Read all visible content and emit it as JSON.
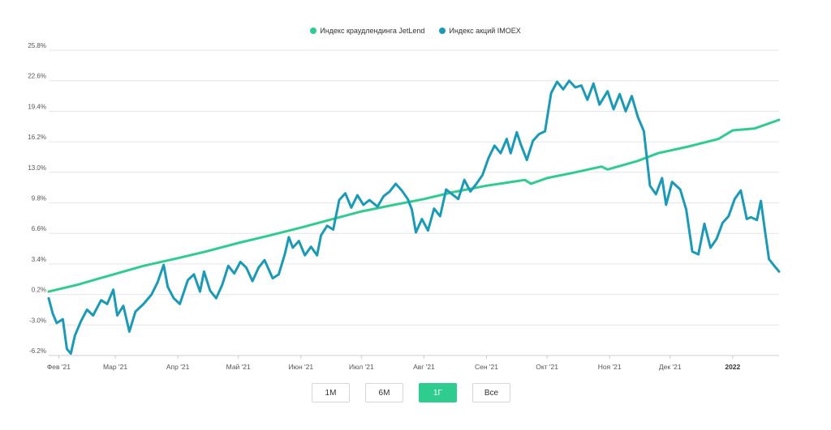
{
  "colors": {
    "jetlend": "#2ecc8e",
    "imoex": "#1a9ab7",
    "grid": "#e6e6e6"
  },
  "legend": [
    {
      "label": "Индекс краудлендинга JetLend",
      "color": "#2ecc8e"
    },
    {
      "label": "Индекс акций IMOEX",
      "color": "#1a9ab7"
    }
  ],
  "range_buttons": [
    {
      "label": "1M",
      "active": false
    },
    {
      "label": "6M",
      "active": false
    },
    {
      "label": "1Г",
      "active": true
    },
    {
      "label": "Все",
      "active": false
    }
  ],
  "chart_data": {
    "type": "line",
    "title": "",
    "xlabel": "",
    "ylabel": "",
    "ylim": [
      -6.2,
      25.8
    ],
    "yticks": [
      "25.8%",
      "22.6%",
      "19.4%",
      "16.2%",
      "13.0%",
      "9.8%",
      "6.6%",
      "3.4%",
      "0.2%",
      "-3.0%",
      "-6.2%"
    ],
    "ytick_values": [
      25.8,
      22.6,
      19.4,
      16.2,
      13.0,
      9.8,
      6.6,
      3.4,
      0.2,
      -3.0,
      -6.2
    ],
    "xlim": [
      "2021-01-27",
      "2022-01-24"
    ],
    "xticks": [
      {
        "label": "Фев '21",
        "date": "2021-02-01",
        "bold": false
      },
      {
        "label": "Мар '21",
        "date": "2021-03-01",
        "bold": false
      },
      {
        "label": "Апр '21",
        "date": "2021-04-01",
        "bold": false
      },
      {
        "label": "Май '21",
        "date": "2021-05-01",
        "bold": false
      },
      {
        "label": "Июн '21",
        "date": "2021-06-01",
        "bold": false
      },
      {
        "label": "Июл '21",
        "date": "2021-07-01",
        "bold": false
      },
      {
        "label": "Авг '21",
        "date": "2021-08-01",
        "bold": false
      },
      {
        "label": "Сен '21",
        "date": "2021-09-01",
        "bold": false
      },
      {
        "label": "Окт '21",
        "date": "2021-10-01",
        "bold": false
      },
      {
        "label": "Ноя '21",
        "date": "2021-11-01",
        "bold": false
      },
      {
        "label": "Дек '21",
        "date": "2021-12-01",
        "bold": false
      },
      {
        "label": "2022",
        "date": "2022-01-01",
        "bold": true
      }
    ],
    "grid": true,
    "legend_position": "top-center",
    "series": [
      {
        "name": "Индекс краудлендинга JetLend",
        "color": "#2ecc8e",
        "points": [
          [
            "2021-01-27",
            0.5
          ],
          [
            "2021-02-10",
            1.2
          ],
          [
            "2021-02-28",
            2.3
          ],
          [
            "2021-03-15",
            3.2
          ],
          [
            "2021-04-01",
            4.0
          ],
          [
            "2021-04-15",
            4.7
          ],
          [
            "2021-05-01",
            5.6
          ],
          [
            "2021-05-15",
            6.3
          ],
          [
            "2021-06-01",
            7.2
          ],
          [
            "2021-06-15",
            8.0
          ],
          [
            "2021-07-01",
            8.9
          ],
          [
            "2021-07-15",
            9.5
          ],
          [
            "2021-08-01",
            10.2
          ],
          [
            "2021-08-15",
            10.9
          ],
          [
            "2021-09-01",
            11.6
          ],
          [
            "2021-09-20",
            12.2
          ],
          [
            "2021-09-23",
            11.8
          ],
          [
            "2021-10-01",
            12.4
          ],
          [
            "2021-10-15",
            13.0
          ],
          [
            "2021-10-28",
            13.6
          ],
          [
            "2021-10-31",
            13.3
          ],
          [
            "2021-11-15",
            14.2
          ],
          [
            "2021-11-25",
            15.0
          ],
          [
            "2021-12-10",
            15.7
          ],
          [
            "2021-12-25",
            16.5
          ],
          [
            "2022-01-01",
            17.4
          ],
          [
            "2022-01-12",
            17.6
          ],
          [
            "2022-01-24",
            18.5
          ]
        ]
      },
      {
        "name": "Индекс акций IMOEX",
        "color": "#1a9ab7",
        "points": [
          [
            "2021-01-27",
            -0.2
          ],
          [
            "2021-01-29",
            -1.8
          ],
          [
            "2021-01-31",
            -2.8
          ],
          [
            "2021-02-03",
            -2.4
          ],
          [
            "2021-02-05",
            -5.5
          ],
          [
            "2021-02-07",
            -6.0
          ],
          [
            "2021-02-09",
            -4.1
          ],
          [
            "2021-02-12",
            -2.6
          ],
          [
            "2021-02-15",
            -1.4
          ],
          [
            "2021-02-18",
            -2.0
          ],
          [
            "2021-02-22",
            -0.4
          ],
          [
            "2021-02-25",
            -0.8
          ],
          [
            "2021-02-28",
            0.7
          ],
          [
            "2021-03-02",
            -2.0
          ],
          [
            "2021-03-05",
            -1.0
          ],
          [
            "2021-03-08",
            -3.7
          ],
          [
            "2021-03-11",
            -1.6
          ],
          [
            "2021-03-15",
            -0.8
          ],
          [
            "2021-03-19",
            0.2
          ],
          [
            "2021-03-22",
            1.5
          ],
          [
            "2021-03-25",
            3.3
          ],
          [
            "2021-03-27",
            1.0
          ],
          [
            "2021-03-30",
            -0.2
          ],
          [
            "2021-04-02",
            -0.8
          ],
          [
            "2021-04-06",
            1.7
          ],
          [
            "2021-04-09",
            2.3
          ],
          [
            "2021-04-12",
            0.5
          ],
          [
            "2021-04-14",
            2.6
          ],
          [
            "2021-04-17",
            0.6
          ],
          [
            "2021-04-20",
            -0.2
          ],
          [
            "2021-04-23",
            1.2
          ],
          [
            "2021-04-26",
            3.2
          ],
          [
            "2021-04-29",
            2.4
          ],
          [
            "2021-05-02",
            3.6
          ],
          [
            "2021-05-05",
            3.0
          ],
          [
            "2021-05-08",
            1.6
          ],
          [
            "2021-05-11",
            3.0
          ],
          [
            "2021-05-14",
            3.8
          ],
          [
            "2021-05-18",
            1.9
          ],
          [
            "2021-05-21",
            2.3
          ],
          [
            "2021-05-24",
            4.4
          ],
          [
            "2021-05-26",
            6.2
          ],
          [
            "2021-05-28",
            5.1
          ],
          [
            "2021-05-31",
            5.8
          ],
          [
            "2021-06-03",
            4.3
          ],
          [
            "2021-06-06",
            5.2
          ],
          [
            "2021-06-09",
            4.3
          ],
          [
            "2021-06-11",
            6.4
          ],
          [
            "2021-06-14",
            7.4
          ],
          [
            "2021-06-17",
            7.0
          ],
          [
            "2021-06-20",
            10.1
          ],
          [
            "2021-06-23",
            10.8
          ],
          [
            "2021-06-26",
            9.3
          ],
          [
            "2021-06-29",
            10.6
          ],
          [
            "2021-07-02",
            9.6
          ],
          [
            "2021-07-05",
            10.1
          ],
          [
            "2021-07-09",
            9.4
          ],
          [
            "2021-07-12",
            10.5
          ],
          [
            "2021-07-15",
            11.0
          ],
          [
            "2021-07-18",
            11.8
          ],
          [
            "2021-07-21",
            11.1
          ],
          [
            "2021-07-24",
            10.2
          ],
          [
            "2021-07-26",
            9.1
          ],
          [
            "2021-07-28",
            6.7
          ],
          [
            "2021-07-31",
            8.1
          ],
          [
            "2021-08-03",
            6.9
          ],
          [
            "2021-08-06",
            9.2
          ],
          [
            "2021-08-09",
            8.4
          ],
          [
            "2021-08-12",
            11.2
          ],
          [
            "2021-08-15",
            10.7
          ],
          [
            "2021-08-18",
            10.2
          ],
          [
            "2021-08-21",
            12.2
          ],
          [
            "2021-08-24",
            11.0
          ],
          [
            "2021-08-27",
            11.8
          ],
          [
            "2021-08-30",
            12.7
          ],
          [
            "2021-09-02",
            14.5
          ],
          [
            "2021-09-05",
            15.8
          ],
          [
            "2021-09-08",
            15.0
          ],
          [
            "2021-09-11",
            16.5
          ],
          [
            "2021-09-13",
            15.0
          ],
          [
            "2021-09-16",
            17.2
          ],
          [
            "2021-09-18",
            15.9
          ],
          [
            "2021-09-21",
            14.3
          ],
          [
            "2021-09-24",
            16.3
          ],
          [
            "2021-09-27",
            17.0
          ],
          [
            "2021-09-30",
            17.3
          ],
          [
            "2021-10-03",
            21.3
          ],
          [
            "2021-10-06",
            22.5
          ],
          [
            "2021-10-09",
            21.7
          ],
          [
            "2021-10-12",
            22.6
          ],
          [
            "2021-10-15",
            21.9
          ],
          [
            "2021-10-18",
            22.1
          ],
          [
            "2021-10-21",
            20.6
          ],
          [
            "2021-10-24",
            22.3
          ],
          [
            "2021-10-27",
            20.1
          ],
          [
            "2021-10-31",
            21.5
          ],
          [
            "2021-11-03",
            19.6
          ],
          [
            "2021-11-06",
            21.2
          ],
          [
            "2021-11-09",
            19.4
          ],
          [
            "2021-11-12",
            21.0
          ],
          [
            "2021-11-15",
            18.8
          ],
          [
            "2021-11-18",
            17.3
          ],
          [
            "2021-11-21",
            11.6
          ],
          [
            "2021-11-24",
            10.7
          ],
          [
            "2021-11-27",
            12.4
          ],
          [
            "2021-11-29",
            9.6
          ],
          [
            "2021-12-02",
            12.0
          ],
          [
            "2021-12-06",
            11.2
          ],
          [
            "2021-12-09",
            9.1
          ],
          [
            "2021-12-12",
            4.7
          ],
          [
            "2021-12-15",
            4.4
          ],
          [
            "2021-12-18",
            7.6
          ],
          [
            "2021-12-21",
            5.1
          ],
          [
            "2021-12-24",
            6.0
          ],
          [
            "2021-12-27",
            7.7
          ],
          [
            "2021-12-30",
            8.4
          ],
          [
            "2022-01-02",
            10.2
          ],
          [
            "2022-01-05",
            11.1
          ],
          [
            "2022-01-08",
            8.1
          ],
          [
            "2022-01-10",
            8.3
          ],
          [
            "2022-01-13",
            8.0
          ],
          [
            "2022-01-15",
            10.0
          ],
          [
            "2022-01-17",
            6.9
          ],
          [
            "2022-01-19",
            3.9
          ],
          [
            "2022-01-22",
            3.1
          ],
          [
            "2022-01-24",
            2.6
          ]
        ]
      }
    ]
  }
}
